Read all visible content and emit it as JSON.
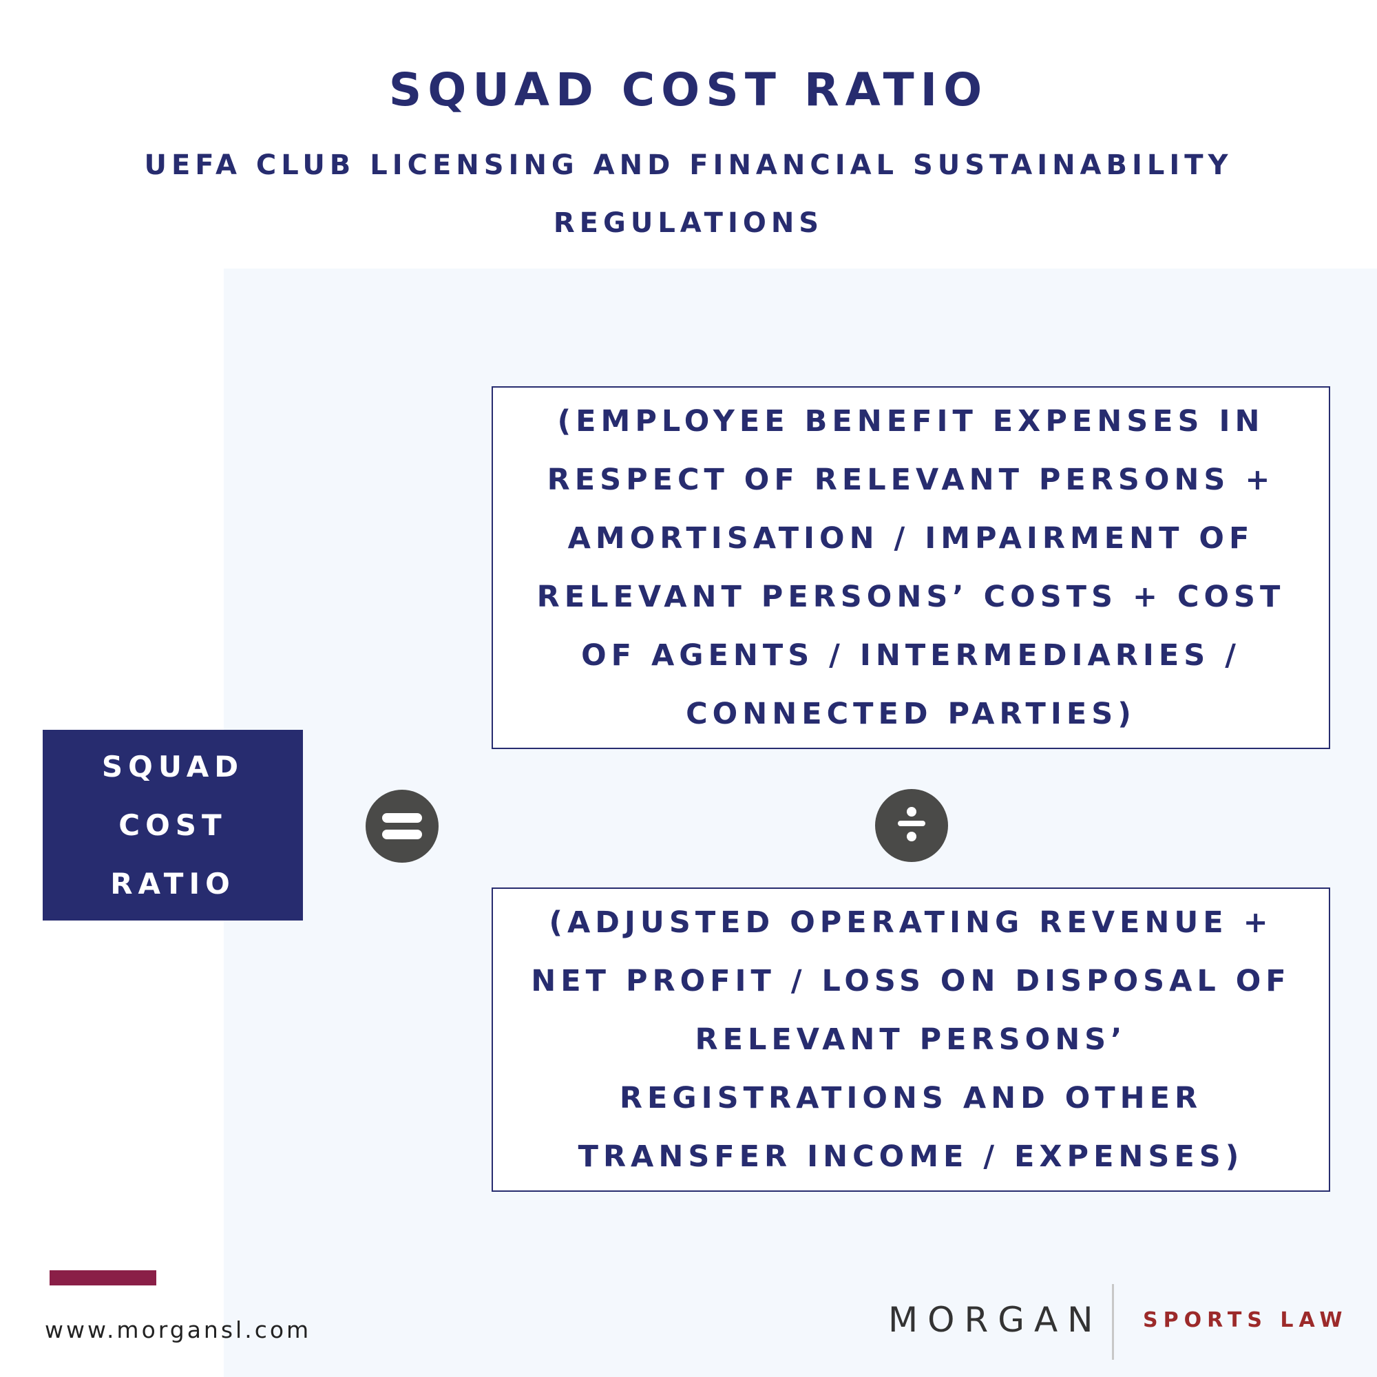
{
  "header": {
    "title": "SQUAD COST RATIO",
    "subtitle": "UEFA CLUB LICENSING AND FINANCIAL SUSTAINABILITY REGULATIONS"
  },
  "formula": {
    "label": "SQUAD COST RATIO",
    "equals_icon": "equals-icon",
    "divide_icon": "divide-icon",
    "numerator": "(EMPLOYEE BENEFIT EXPENSES IN RESPECT OF RELEVANT PERSONS + AMORTISATION / IMPAIRMENT OF RELEVANT PERSONS’ COSTS + COST OF AGENTS / INTERMEDIARIES / CONNECTED PARTIES)",
    "denominator": "(ADJUSTED OPERATING REVENUE + NET PROFIT / LOSS ON DISPOSAL OF RELEVANT PERSONS’ REGISTRATIONS AND OTHER TRANSFER INCOME / EXPENSES)"
  },
  "footer": {
    "website": "www.morgansl.com",
    "brand_main": "MORGAN",
    "brand_sub": "SPORTS LAW"
  },
  "colors": {
    "navy": "#272c6f",
    "accent": "#8a1f47",
    "brand_red": "#9c2a2a",
    "operator_gray": "#4a4a48",
    "panel_bg": "#f4f8fd"
  }
}
